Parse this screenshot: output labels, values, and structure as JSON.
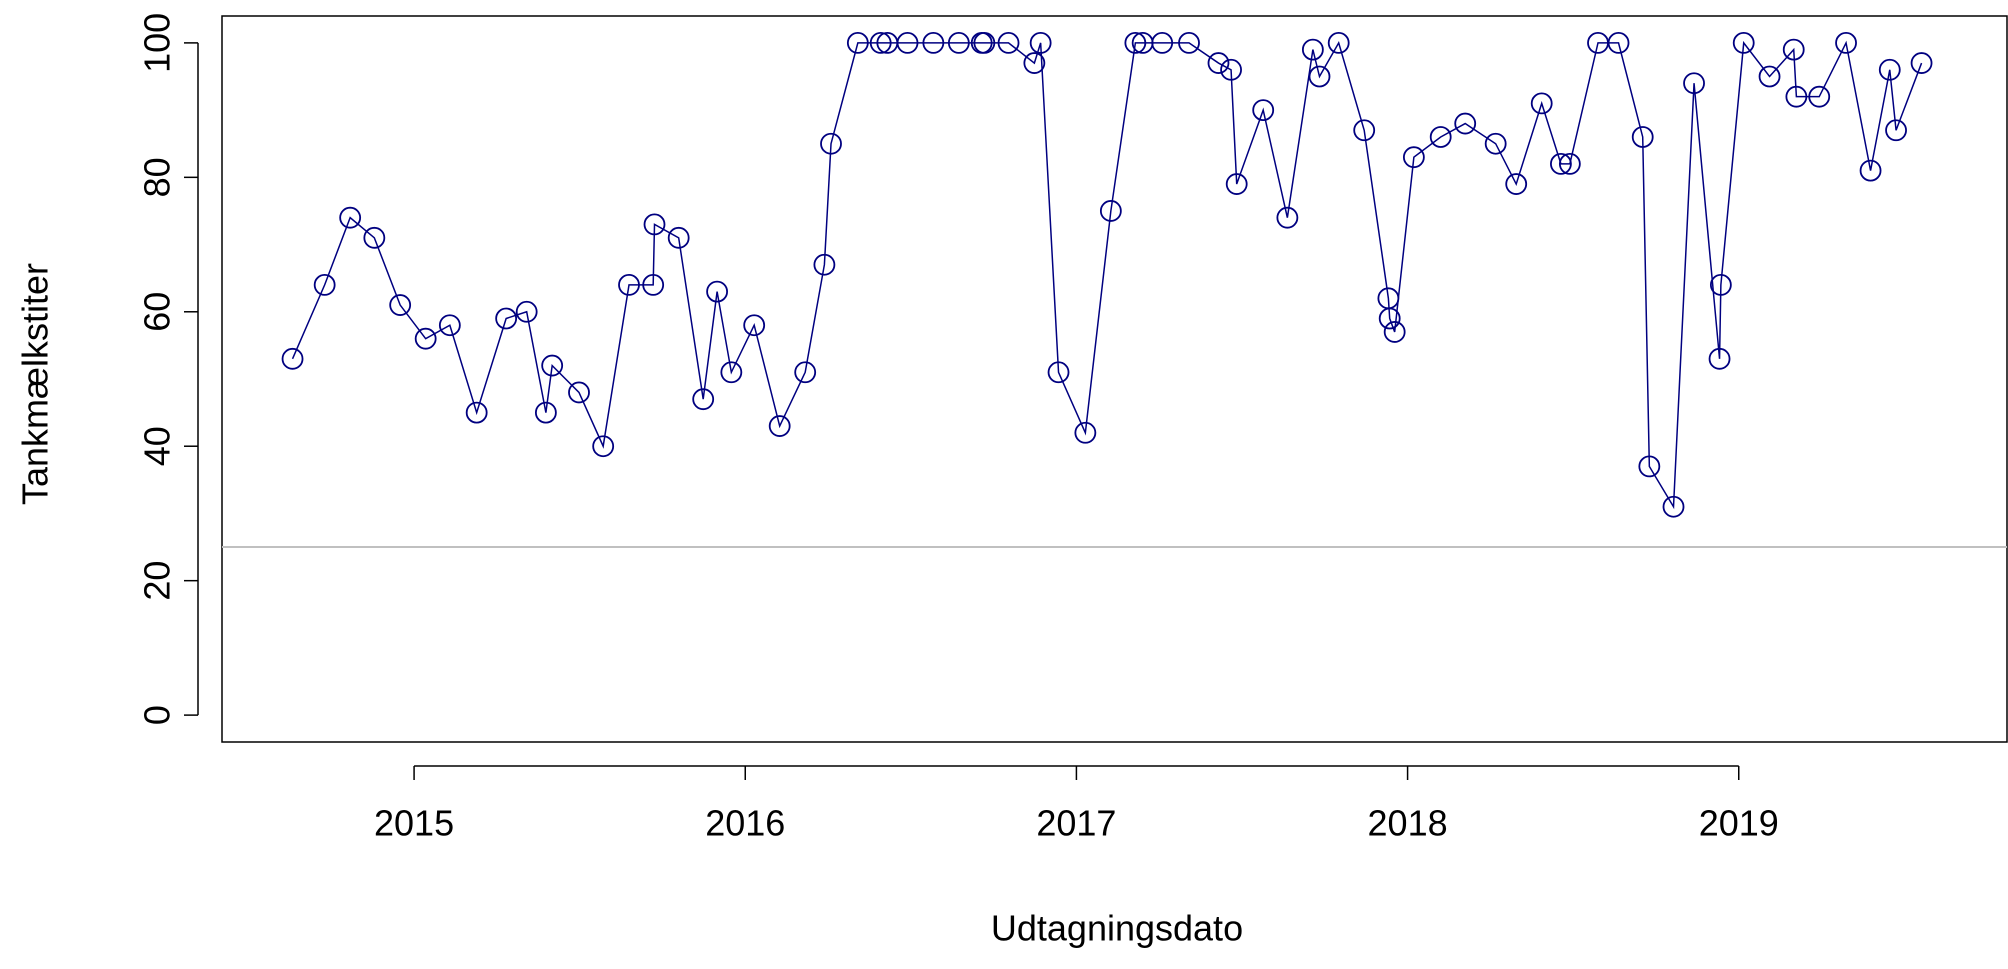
{
  "chart_data": {
    "type": "line",
    "x_label": "Udtagningsdato",
    "y_label": "Tankmælkstiter",
    "x": [
      2014.633,
      2014.73,
      2014.807,
      2014.88,
      2014.958,
      2015.035,
      2015.108,
      2015.189,
      2015.278,
      2015.34,
      2015.398,
      2015.417,
      2015.498,
      2015.571,
      2015.649,
      2015.722,
      2015.726,
      2015.799,
      2015.873,
      2015.915,
      2015.958,
      2016.027,
      2016.104,
      2016.181,
      2016.239,
      2016.259,
      2016.34,
      2016.409,
      2016.429,
      2016.49,
      2016.568,
      2016.645,
      2016.714,
      2016.722,
      2016.795,
      2016.873,
      2016.892,
      2016.946,
      2017.027,
      2017.104,
      2017.178,
      2017.2,
      2017.259,
      2017.34,
      2017.429,
      2017.467,
      2017.484,
      2017.564,
      2017.637,
      2017.714,
      2017.734,
      2017.792,
      2017.869,
      2017.942,
      2017.946,
      2017.961,
      2018.019,
      2018.1,
      2018.174,
      2018.266,
      2018.328,
      2018.405,
      2018.463,
      2018.49,
      2018.575,
      2018.637,
      2018.71,
      2018.73,
      2018.803,
      2018.865,
      2018.942,
      2018.946,
      2019.015,
      2019.093,
      2019.166,
      2019.174,
      2019.243,
      2019.324,
      2019.398,
      2019.456,
      2019.475,
      2019.552
    ],
    "series": [
      {
        "color": "#000080",
        "values": [
          53,
          64,
          74,
          71,
          61,
          56,
          58,
          45,
          59,
          60,
          45,
          52,
          48,
          40,
          64,
          64,
          73,
          71,
          47,
          63,
          51,
          58,
          43,
          51,
          67,
          85,
          100,
          100,
          100,
          100,
          100,
          100,
          100,
          100,
          100,
          97,
          100,
          51,
          42,
          75,
          100,
          100,
          100,
          100,
          97,
          96,
          79,
          90,
          74,
          99,
          95,
          100,
          87,
          62,
          59,
          57,
          83,
          86,
          88,
          85,
          79,
          91,
          82,
          82,
          100,
          100,
          86,
          37,
          31,
          94,
          53,
          64,
          100,
          95,
          99,
          92,
          92,
          100,
          81,
          96,
          87,
          97
        ]
      }
    ],
    "xlim": [
      2014.42,
      2019.81
    ],
    "ylim": [
      -4,
      104
    ],
    "xticks": [
      2015,
      2016,
      2017,
      2018,
      2019
    ],
    "yticks": [
      0,
      20,
      40,
      60,
      80,
      100
    ],
    "hline": 25,
    "hline_color": "#c0c0c0"
  }
}
